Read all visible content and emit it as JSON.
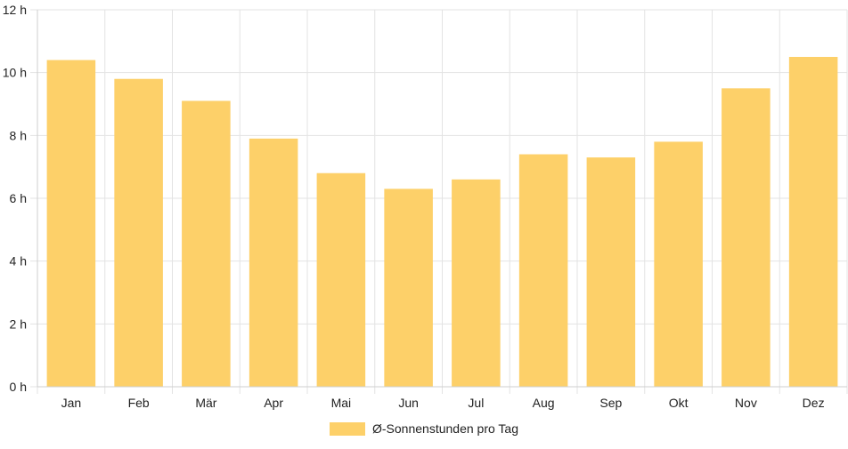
{
  "chart_data": {
    "type": "bar",
    "categories": [
      "Jan",
      "Feb",
      "Mär",
      "Apr",
      "Mai",
      "Jun",
      "Jul",
      "Aug",
      "Sep",
      "Okt",
      "Nov",
      "Dez"
    ],
    "series": [
      {
        "name": "Ø-Sonnenstunden pro Tag",
        "values": [
          10.4,
          9.8,
          9.1,
          7.9,
          6.8,
          6.3,
          6.6,
          7.4,
          7.3,
          7.8,
          9.5,
          10.5
        ],
        "color": "#fdd069"
      }
    ],
    "y_ticks": [
      "0 h",
      "2 h",
      "4 h",
      "6 h",
      "8 h",
      "10 h",
      "12 h"
    ],
    "ylim": [
      0,
      12
    ],
    "grid": true,
    "legend_position": "bottom"
  }
}
